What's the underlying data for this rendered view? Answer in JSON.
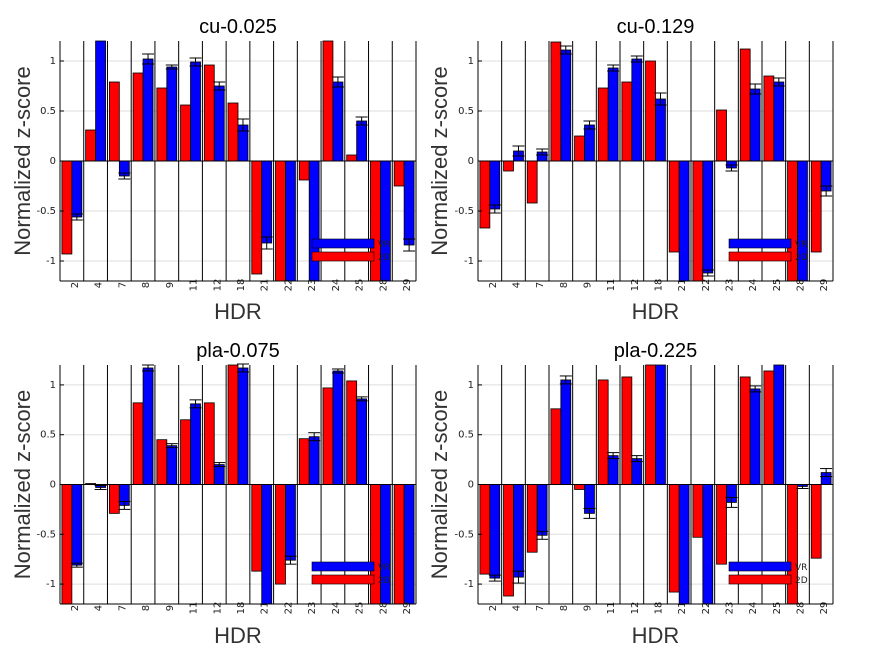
{
  "chart_data": [
    {
      "type": "bar",
      "title": "cu-0.025",
      "xlabel": "HDR",
      "ylabel": "Normalized z-score",
      "ylim": [
        -1.2,
        1.2
      ],
      "yticks": [
        -1,
        -0.5,
        0,
        0.5,
        1
      ],
      "categories": [
        "2",
        "4",
        "7",
        "8",
        "9",
        "11",
        "12",
        "18",
        "21",
        "22",
        "23",
        "24",
        "25",
        "28",
        "29"
      ],
      "series": [
        {
          "name": "2D",
          "color": "#ff0000",
          "values": [
            -0.93,
            0.31,
            0.79,
            0.88,
            0.73,
            0.56,
            0.96,
            0.58,
            -1.13,
            -1.25,
            -0.19,
            1.25,
            0.06,
            -1.25,
            -0.25
          ]
        },
        {
          "name": "VR",
          "color": "#0000ff",
          "values": [
            -0.56,
            1.25,
            -0.15,
            1.02,
            0.94,
            0.99,
            0.75,
            0.36,
            -0.82,
            -1.25,
            -1.25,
            0.79,
            0.4,
            -1.25,
            -0.84
          ]
        }
      ],
      "errors_vr": [
        0.03,
        0.05,
        0.03,
        0.05,
        0.02,
        0.04,
        0.04,
        0.06,
        0.06,
        0.02,
        0.03,
        0.05,
        0.04,
        0.03,
        0.06
      ],
      "legend": "lower-right",
      "grid": true
    },
    {
      "type": "bar",
      "title": "cu-0.129",
      "xlabel": "HDR",
      "ylabel": "Normalized z-score",
      "ylim": [
        -1.2,
        1.2
      ],
      "yticks": [
        -1,
        -0.5,
        0,
        0.5,
        1
      ],
      "categories": [
        "2",
        "4",
        "7",
        "8",
        "9",
        "11",
        "12",
        "18",
        "21",
        "22",
        "23",
        "24",
        "25",
        "28",
        "29"
      ],
      "series": [
        {
          "name": "2D",
          "color": "#ff0000",
          "values": [
            -0.67,
            -0.1,
            -0.42,
            1.19,
            0.25,
            0.73,
            0.79,
            1.0,
            -0.91,
            -1.25,
            0.51,
            1.12,
            0.85,
            -1.25,
            -0.91
          ]
        },
        {
          "name": "VR",
          "color": "#0000ff",
          "values": [
            -0.48,
            0.1,
            0.09,
            1.11,
            0.36,
            0.93,
            1.02,
            0.62,
            -1.25,
            -1.12,
            -0.07,
            0.72,
            0.79,
            -1.25,
            -0.3
          ]
        }
      ],
      "errors_vr": [
        0.04,
        0.05,
        0.03,
        0.04,
        0.04,
        0.03,
        0.03,
        0.06,
        0.03,
        0.03,
        0.03,
        0.05,
        0.04,
        0.02,
        0.05
      ],
      "legend": "lower-right",
      "grid": true
    },
    {
      "type": "bar",
      "title": "pla-0.075",
      "xlabel": "HDR",
      "ylabel": "Normalized z-score",
      "ylim": [
        -1.2,
        1.2
      ],
      "yticks": [
        -1,
        -0.5,
        0,
        0.5,
        1
      ],
      "categories": [
        "2",
        "4",
        "7",
        "8",
        "9",
        "11",
        "12",
        "18",
        "21",
        "22",
        "23",
        "24",
        "25",
        "28",
        "29"
      ],
      "series": [
        {
          "name": "2D",
          "color": "#ff0000",
          "values": [
            -1.25,
            0.01,
            -0.29,
            0.82,
            0.45,
            0.65,
            0.82,
            1.2,
            -0.87,
            -1.0,
            0.46,
            0.97,
            1.04,
            -1.25,
            -1.25
          ]
        },
        {
          "name": "VR",
          "color": "#0000ff",
          "values": [
            -0.81,
            -0.03,
            -0.21,
            1.17,
            0.39,
            0.81,
            0.2,
            1.17,
            -1.25,
            -0.76,
            0.48,
            1.14,
            0.86,
            -1.25,
            -1.25
          ]
        }
      ],
      "errors_vr": [
        0.02,
        0.02,
        0.04,
        0.03,
        0.02,
        0.04,
        0.02,
        0.04,
        0.02,
        0.04,
        0.04,
        0.02,
        0.02,
        0.02,
        0.02
      ],
      "legend": "lower-right",
      "grid": true
    },
    {
      "type": "bar",
      "title": "pla-0.225",
      "xlabel": "HDR",
      "ylabel": "Normalized z-score",
      "ylim": [
        -1.2,
        1.2
      ],
      "yticks": [
        -1,
        -0.5,
        0,
        0.5,
        1
      ],
      "categories": [
        "2",
        "4",
        "7",
        "8",
        "9",
        "11",
        "12",
        "18",
        "21",
        "22",
        "23",
        "24",
        "25",
        "28",
        "29"
      ],
      "series": [
        {
          "name": "2D",
          "color": "#ff0000",
          "values": [
            -0.9,
            -1.12,
            -0.68,
            0.76,
            -0.05,
            1.05,
            1.08,
            1.25,
            -1.08,
            -0.53,
            -0.8,
            1.08,
            1.14,
            -1.25,
            -0.74
          ]
        },
        {
          "name": "VR",
          "color": "#0000ff",
          "values": [
            -0.94,
            -0.93,
            -0.51,
            1.05,
            -0.29,
            0.29,
            0.26,
            1.25,
            -1.25,
            -1.25,
            -0.18,
            0.96,
            1.25,
            -0.02,
            0.12
          ]
        }
      ],
      "errors_vr": [
        0.03,
        0.06,
        0.04,
        0.04,
        0.05,
        0.03,
        0.03,
        0.02,
        0.02,
        0.02,
        0.05,
        0.03,
        0.02,
        0.02,
        0.04
      ],
      "legend": "lower-right",
      "grid": true
    }
  ]
}
